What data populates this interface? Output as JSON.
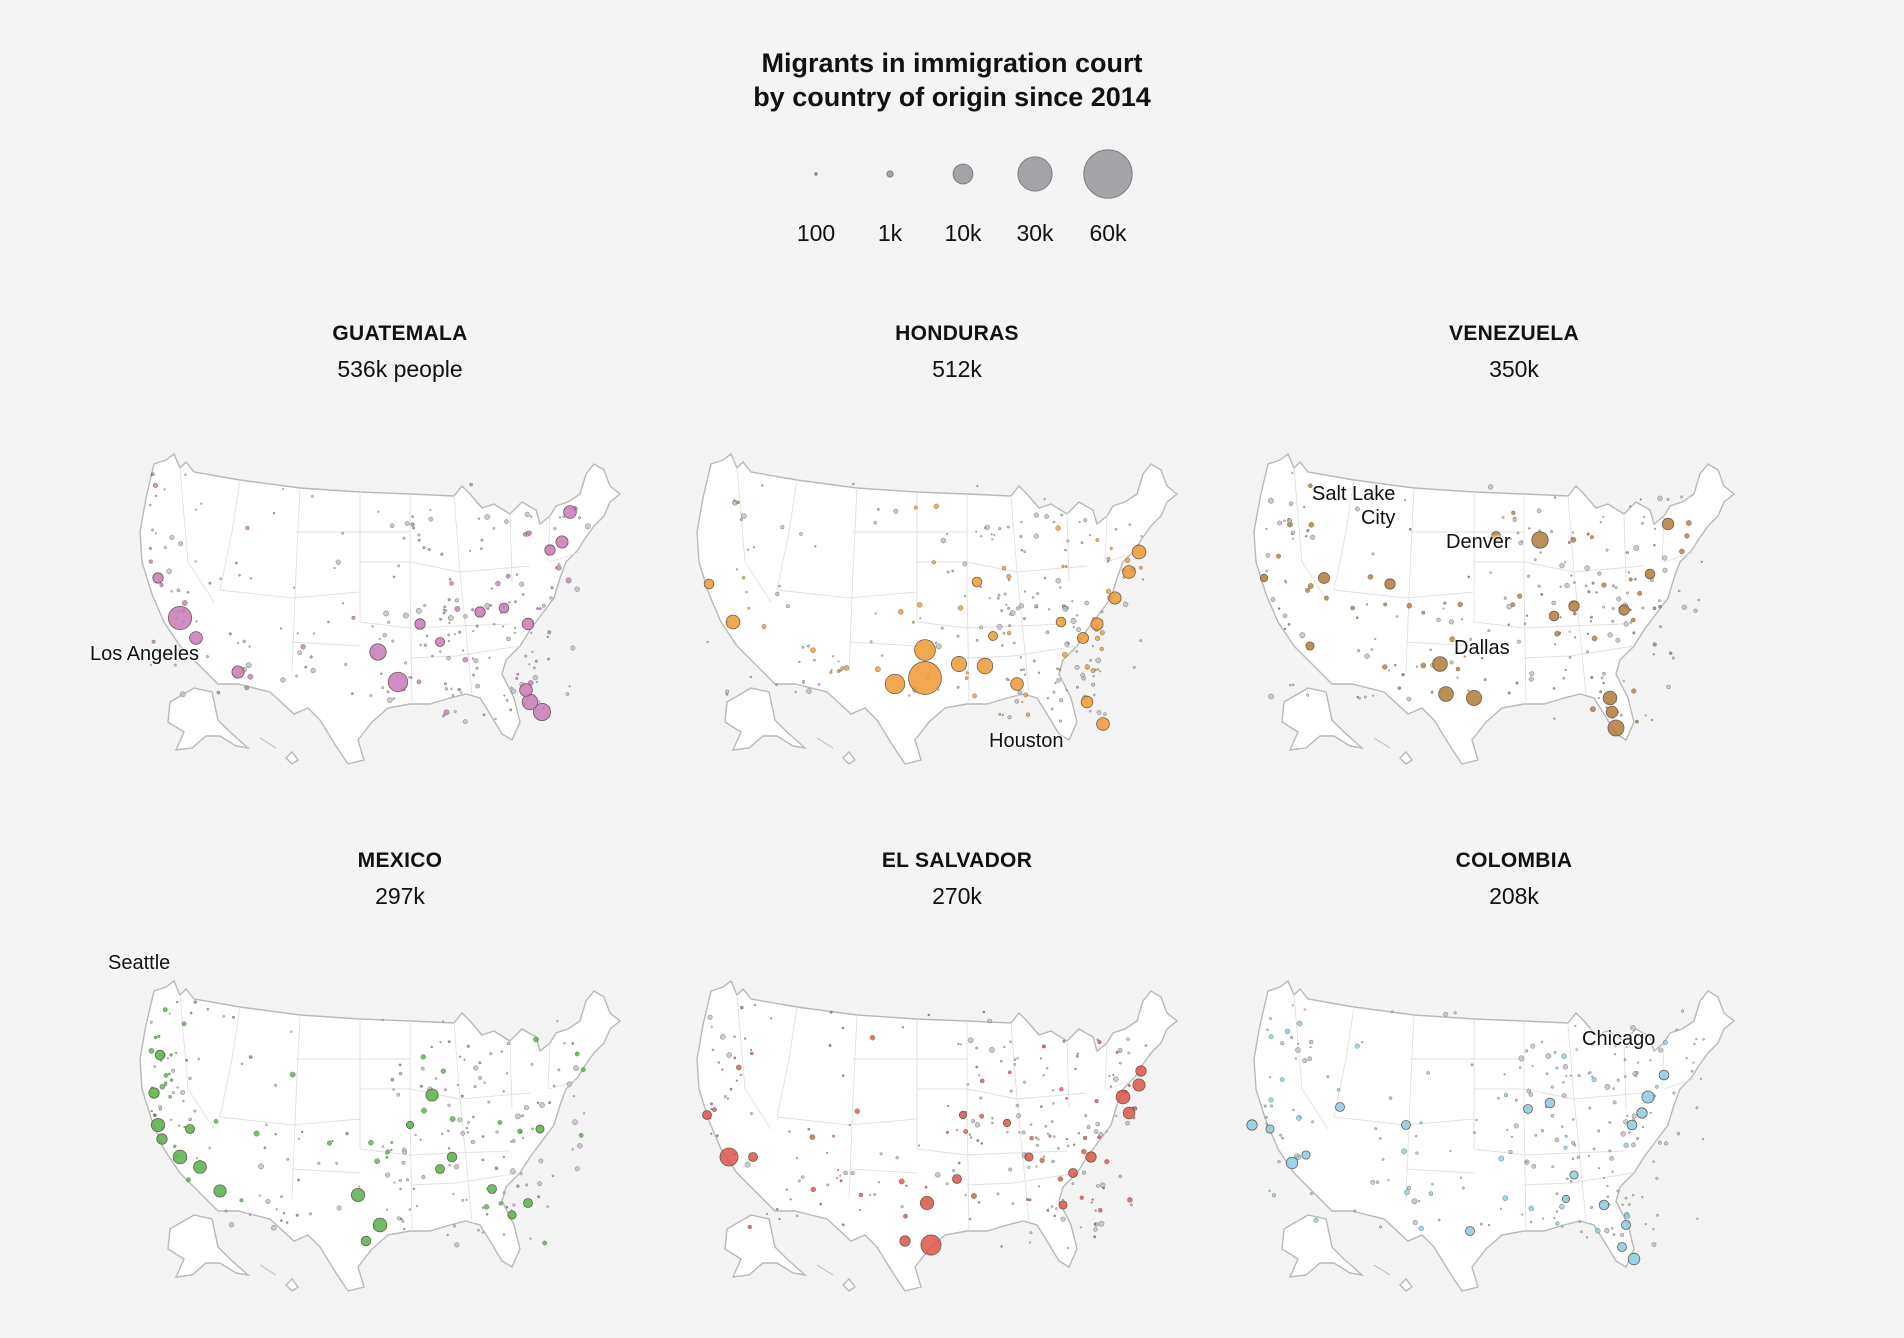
{
  "title": {
    "line1": "Migrants in immigration court",
    "line2": "by country of origin since 2014"
  },
  "size_legend": [
    {
      "label": "100",
      "value": 100
    },
    {
      "label": "1k",
      "value": 1000
    },
    {
      "label": "10k",
      "value": 10000
    },
    {
      "label": "30k",
      "value": 30000
    },
    {
      "label": "60k",
      "value": 60000
    }
  ],
  "colors": {
    "legend": "#a3a3a8",
    "guatemala": "#c57ab6",
    "honduras": "#ee9a33",
    "venezuela": "#b07b3a",
    "mexico": "#56b04a",
    "el_salvador": "#dd5349",
    "colombia": "#8dcbe3"
  },
  "maps": [
    {
      "key": "guatemala",
      "name": "GUATEMALA",
      "total": "536k people",
      "color": "#c57ab6",
      "cities": [
        {
          "label": "Los Angeles"
        }
      ]
    },
    {
      "key": "honduras",
      "name": "HONDURAS",
      "total": "512k",
      "color": "#ee9a33",
      "cities": [
        {
          "label": "Houston"
        }
      ]
    },
    {
      "key": "venezuela",
      "name": "VENEZUELA",
      "total": "350k",
      "color": "#b07b3a",
      "cities": [
        {
          "label": "Salt Lake\nCity"
        },
        {
          "label": "Denver"
        },
        {
          "label": "Dallas"
        }
      ]
    },
    {
      "key": "mexico",
      "name": "MEXICO",
      "total": "297k",
      "color": "#56b04a",
      "cities": [
        {
          "label": "Seattle"
        }
      ]
    },
    {
      "key": "el_salvador",
      "name": "EL SALVADOR",
      "total": "270k",
      "color": "#dd5349",
      "cities": []
    },
    {
      "key": "colombia",
      "name": "COLOMBIA",
      "total": "208k",
      "color": "#8dcbe3",
      "cities": [
        {
          "label": "Chicago"
        }
      ]
    }
  ]
}
